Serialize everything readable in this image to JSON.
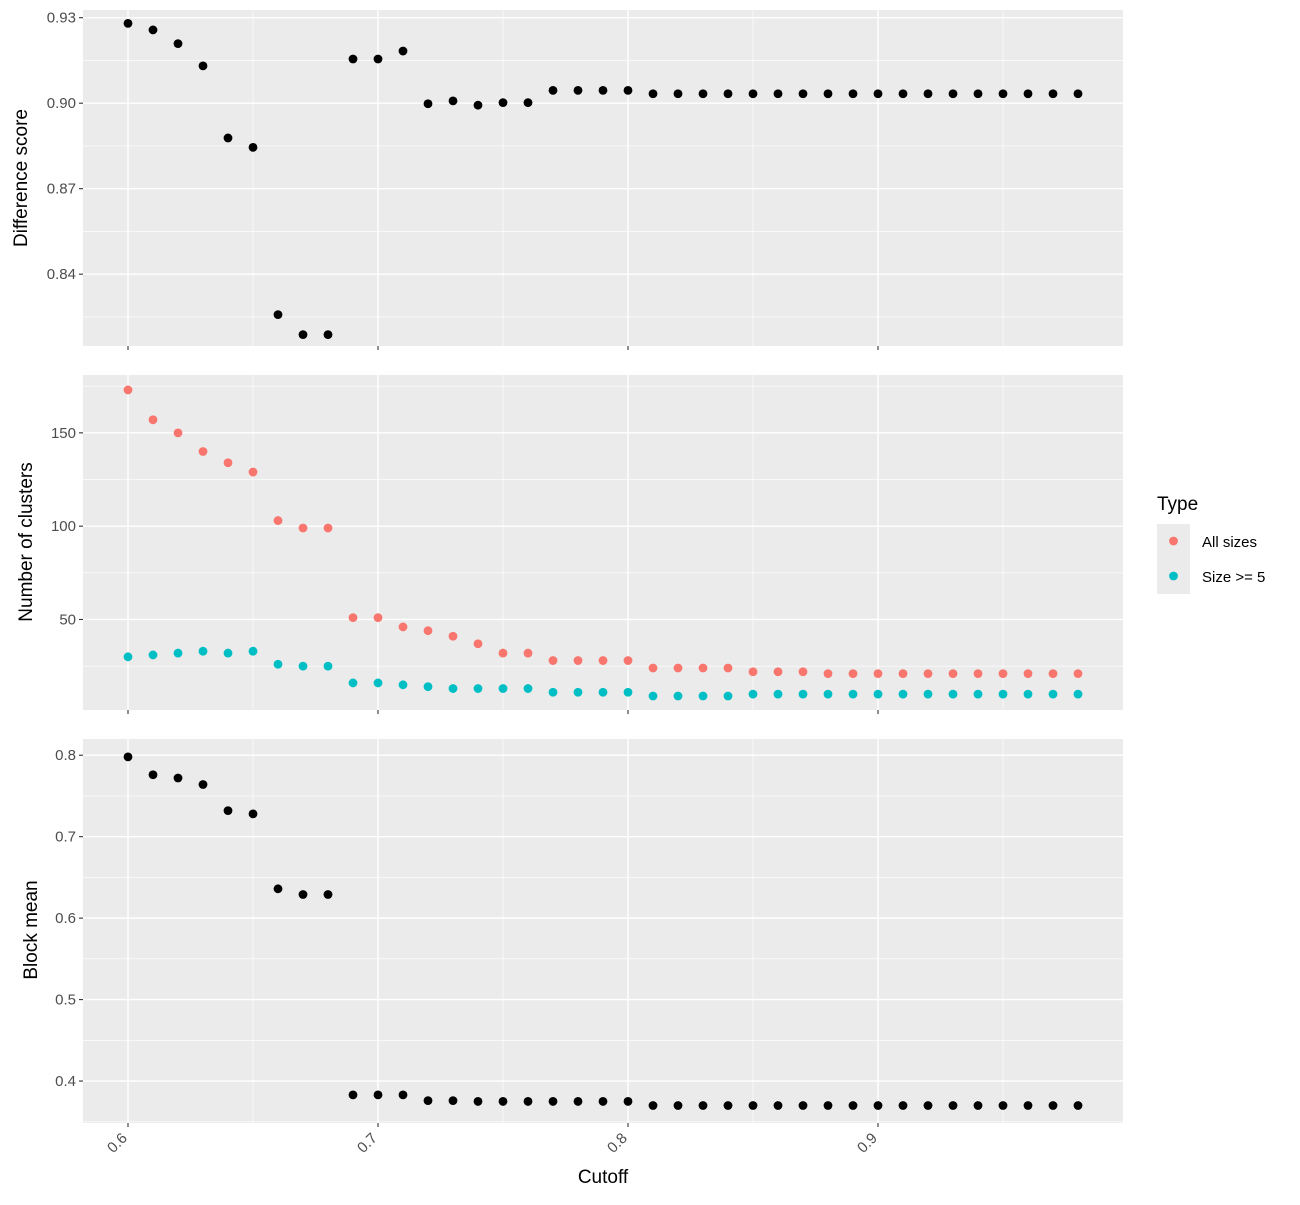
{
  "chart_data": {
    "type": "scatter",
    "xlabel": "Cutoff",
    "x_ticks": [
      "0.6",
      "0.7",
      "0.8",
      "0.9"
    ],
    "x_tick_values": [
      0.6,
      0.7,
      0.8,
      0.9
    ],
    "xlim": [
      0.582,
      0.998
    ],
    "grid": true,
    "legend": {
      "title": "Type",
      "position": "right",
      "entries": [
        {
          "label": "All sizes",
          "color": "#F8766D"
        },
        {
          "label": "Size >= 5",
          "color": "#00BFC4"
        }
      ]
    },
    "x": [
      0.6,
      0.61,
      0.62,
      0.63,
      0.64,
      0.65,
      0.66,
      0.67,
      0.68,
      0.69,
      0.7,
      0.71,
      0.72,
      0.73,
      0.74,
      0.75,
      0.76,
      0.77,
      0.78,
      0.79,
      0.8,
      0.81,
      0.82,
      0.83,
      0.84,
      0.85,
      0.86,
      0.87,
      0.88,
      0.89,
      0.9,
      0.91,
      0.92,
      0.93,
      0.94,
      0.95,
      0.96,
      0.97,
      0.98
    ],
    "panels": [
      {
        "ylabel": "Difference score",
        "y_ticks": [
          "0.84",
          "0.87",
          "0.90",
          "0.93"
        ],
        "y_tick_values": [
          0.84,
          0.87,
          0.9,
          0.93
        ],
        "ylim": [
          0.8148,
          0.9327
        ],
        "series": [
          {
            "color": "#000000",
            "values": [
              0.928,
              0.9257,
              0.9209,
              0.9131,
              0.8878,
              0.8845,
              0.8258,
              0.8188,
              0.8188,
              0.9155,
              0.9155,
              0.9183,
              0.8998,
              0.9008,
              0.8993,
              0.9002,
              0.9002,
              0.9045,
              0.9045,
              0.9045,
              0.9045,
              0.9033,
              0.9033,
              0.9033,
              0.9033,
              0.9033,
              0.9033,
              0.9033,
              0.9033,
              0.9033,
              0.9033,
              0.9033,
              0.9033,
              0.9033,
              0.9033,
              0.9033,
              0.9033,
              0.9033,
              0.9033
            ]
          }
        ]
      },
      {
        "ylabel": "Number of clusters",
        "y_ticks": [
          "50",
          "100",
          "150"
        ],
        "y_tick_values": [
          50,
          100,
          150
        ],
        "ylim": [
          1.5,
          181
        ],
        "series": [
          {
            "name": "All sizes",
            "color": "#F8766D",
            "values": [
              173,
              157,
              150,
              140,
              134,
              129,
              103,
              99,
              99,
              51,
              51,
              46,
              44,
              41,
              37,
              32,
              32,
              28,
              28,
              28,
              28,
              24,
              24,
              24,
              24,
              22,
              22,
              22,
              21,
              21,
              21,
              21,
              21,
              21,
              21,
              21,
              21,
              21,
              21
            ]
          },
          {
            "name": "Size >= 5",
            "color": "#00BFC4",
            "values": [
              30,
              31,
              32,
              33,
              32,
              33,
              26,
              25,
              25,
              16,
              16,
              15,
              14,
              13,
              13,
              13,
              13,
              11,
              11,
              11,
              11,
              9,
              9,
              9,
              9,
              10,
              10,
              10,
              10,
              10,
              10,
              10,
              10,
              10,
              10,
              10,
              10,
              10,
              10
            ]
          }
        ]
      },
      {
        "ylabel": "Block mean",
        "y_ticks": [
          "0.4",
          "0.5",
          "0.6",
          "0.7",
          "0.8"
        ],
        "y_tick_values": [
          0.4,
          0.5,
          0.6,
          0.7,
          0.8
        ],
        "ylim": [
          0.3485,
          0.8199
        ],
        "series": [
          {
            "color": "#000000",
            "values": [
              0.798,
              0.776,
              0.772,
              0.764,
              0.732,
              0.728,
              0.636,
              0.629,
              0.629,
              0.383,
              0.383,
              0.383,
              0.376,
              0.376,
              0.375,
              0.375,
              0.375,
              0.375,
              0.375,
              0.375,
              0.375,
              0.37,
              0.37,
              0.37,
              0.37,
              0.37,
              0.37,
              0.37,
              0.37,
              0.37,
              0.37,
              0.37,
              0.37,
              0.37,
              0.37,
              0.37,
              0.37,
              0.37,
              0.37
            ]
          }
        ]
      }
    ]
  }
}
